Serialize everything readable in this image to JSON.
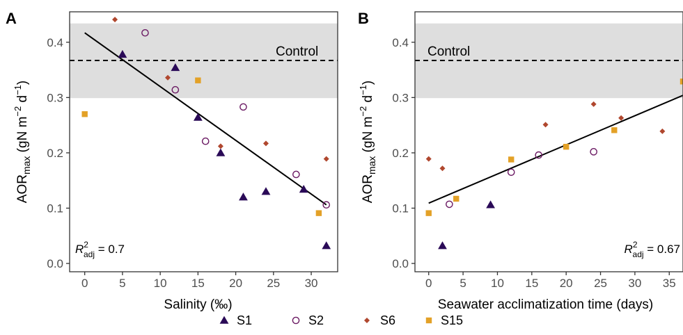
{
  "chart_data": [
    {
      "type": "scatter",
      "panel_label": "A",
      "xlabel": "Salinity (‰)",
      "ylabel": {
        "base": "AOR",
        "sub": "max",
        "units": " (gN m",
        "exp1": "−2",
        "mid": " d",
        "exp2": "−1",
        "close": ")"
      },
      "xlim": [
        -2,
        33.5
      ],
      "ylim": [
        -0.015,
        0.455
      ],
      "xticks": [
        0,
        5,
        10,
        15,
        20,
        25,
        30
      ],
      "yticks": [
        0.0,
        0.1,
        0.2,
        0.3,
        0.4
      ],
      "ytick_labels": [
        "0.0",
        "0.1",
        "0.2",
        "0.3",
        "0.4"
      ],
      "control": {
        "label": "Control",
        "value": 0.367,
        "band": [
          0.299,
          0.434
        ]
      },
      "fit": {
        "x": [
          0,
          32
        ],
        "y": [
          0.417,
          0.106
        ]
      },
      "r2": {
        "prefix": "R",
        "sup": "2",
        "sub": "adj",
        "value": " = 0.7",
        "position": "bottom-left"
      },
      "series": [
        {
          "name": "S1",
          "points": [
            [
              5,
              0.378
            ],
            [
              12,
              0.354
            ],
            [
              15,
              0.264
            ],
            [
              18,
              0.2
            ],
            [
              21,
              0.12
            ],
            [
              24,
              0.13
            ],
            [
              29,
              0.134
            ],
            [
              32,
              0.032
            ]
          ]
        },
        {
          "name": "S2",
          "points": [
            [
              8,
              0.417
            ],
            [
              12,
              0.314
            ],
            [
              16,
              0.221
            ],
            [
              21,
              0.283
            ],
            [
              28,
              0.161
            ],
            [
              32,
              0.106
            ]
          ]
        },
        {
          "name": "S6",
          "points": [
            [
              4,
              0.441
            ],
            [
              11,
              0.336
            ],
            [
              18,
              0.212
            ],
            [
              24,
              0.217
            ],
            [
              32,
              0.189
            ]
          ]
        },
        {
          "name": "S15",
          "points": [
            [
              0,
              0.27
            ],
            [
              15,
              0.331
            ],
            [
              31,
              0.091
            ]
          ]
        }
      ]
    },
    {
      "type": "scatter",
      "panel_label": "B",
      "xlabel": "Seawater acclimatization time (days)",
      "ylabel": {
        "base": "AOR",
        "sub": "max",
        "units": " (gN m",
        "exp1": "−2",
        "mid": " d",
        "exp2": "−1",
        "close": ")"
      },
      "xlim": [
        -2,
        37
      ],
      "ylim": [
        -0.015,
        0.455
      ],
      "xticks": [
        0,
        5,
        10,
        15,
        20,
        25,
        30,
        35
      ],
      "yticks": [
        0.0,
        0.1,
        0.2,
        0.3,
        0.4
      ],
      "ytick_labels": [
        "0.0",
        "0.1",
        "0.2",
        "0.3",
        "0.4"
      ],
      "control": {
        "label": "Control",
        "value": 0.367,
        "band": [
          0.299,
          0.434
        ]
      },
      "fit": {
        "x": [
          0,
          37
        ],
        "y": [
          0.109,
          0.304
        ]
      },
      "r2": {
        "prefix": "R",
        "sup": "2",
        "sub": "adj",
        "value": " = 0.67",
        "position": "bottom-right"
      },
      "series": [
        {
          "name": "S1",
          "points": [
            [
              2,
              0.032
            ],
            [
              9,
              0.106
            ]
          ]
        },
        {
          "name": "S2",
          "points": [
            [
              3,
              0.107
            ],
            [
              12,
              0.165
            ],
            [
              16,
              0.196
            ],
            [
              24,
              0.202
            ]
          ]
        },
        {
          "name": "S6",
          "points": [
            [
              0,
              0.189
            ],
            [
              2,
              0.172
            ],
            [
              17,
              0.251
            ],
            [
              24,
              0.288
            ],
            [
              28,
              0.263
            ],
            [
              34,
              0.239
            ]
          ]
        },
        {
          "name": "S15",
          "points": [
            [
              0,
              0.091
            ],
            [
              4,
              0.117
            ],
            [
              12,
              0.188
            ],
            [
              20,
              0.211
            ],
            [
              27,
              0.241
            ],
            [
              37,
              0.329
            ]
          ]
        }
      ]
    }
  ],
  "legend": {
    "placement": "bottom",
    "items": [
      {
        "name": "S1",
        "marker": "triangle",
        "color": "#2a0a57"
      },
      {
        "name": "S2",
        "marker": "open-circle",
        "color": "#6b1a63"
      },
      {
        "name": "S6",
        "marker": "diamond",
        "color": "#b0472e"
      },
      {
        "name": "S15",
        "marker": "square",
        "color": "#e3a127"
      }
    ]
  },
  "colors": {
    "band": "#dedede",
    "fit": "#000000",
    "control": "#000000",
    "axis": "#333333"
  }
}
